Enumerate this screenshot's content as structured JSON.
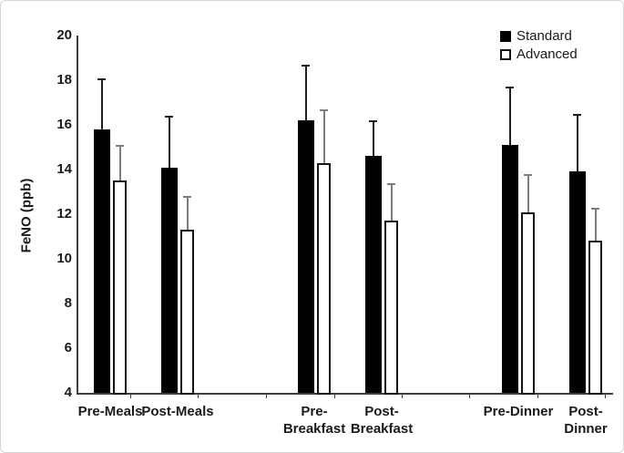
{
  "chart_data": {
    "type": "bar",
    "title": "",
    "ylabel": "FeNO (ppb)",
    "xlabel": "",
    "ylim": [
      4,
      20
    ],
    "yticks": [
      4,
      6,
      8,
      10,
      12,
      14,
      16,
      18,
      20
    ],
    "grid": false,
    "legend_position": "top-right",
    "error_bars": "upper-only",
    "categories": [
      "Pre-Meals",
      "Post-Meals",
      "Pre-Breakfast",
      "Post-Breakfast",
      "Pre-Dinner",
      "Post-Dinner"
    ],
    "tick_labels": [
      "Pre-Meals",
      "Post-Meals",
      "Pre-\nBreakfast",
      "Post-\nBreakfast",
      "Pre-Dinner",
      "Post-\nDinner"
    ],
    "series": [
      {
        "name": "Standard",
        "fill": "#000000",
        "values": [
          15.8,
          14.1,
          16.2,
          14.6,
          15.1,
          13.9
        ],
        "errors_up": [
          2.3,
          2.3,
          2.5,
          1.6,
          2.6,
          2.6
        ]
      },
      {
        "name": "Advanced",
        "fill": "#ffffff",
        "values": [
          13.5,
          11.3,
          14.3,
          11.7,
          12.1,
          10.8
        ],
        "errors_up": [
          1.6,
          1.5,
          2.4,
          1.7,
          1.7,
          1.5
        ]
      }
    ]
  },
  "colors": {
    "axis": "#3f3f3f",
    "text": "#1a1a1a",
    "bar_standard": "#000000",
    "bar_advanced_fill": "#ffffff",
    "bar_outline": "#141414",
    "error_standard": "#1f1f1f",
    "error_advanced": "#7d7d7d",
    "figure_border": "#d6d6d6"
  },
  "legend": {
    "items": [
      {
        "label": "Standard",
        "swatch": "black-filled-square"
      },
      {
        "label": "Advanced",
        "swatch": "white-outlined-square"
      }
    ]
  }
}
